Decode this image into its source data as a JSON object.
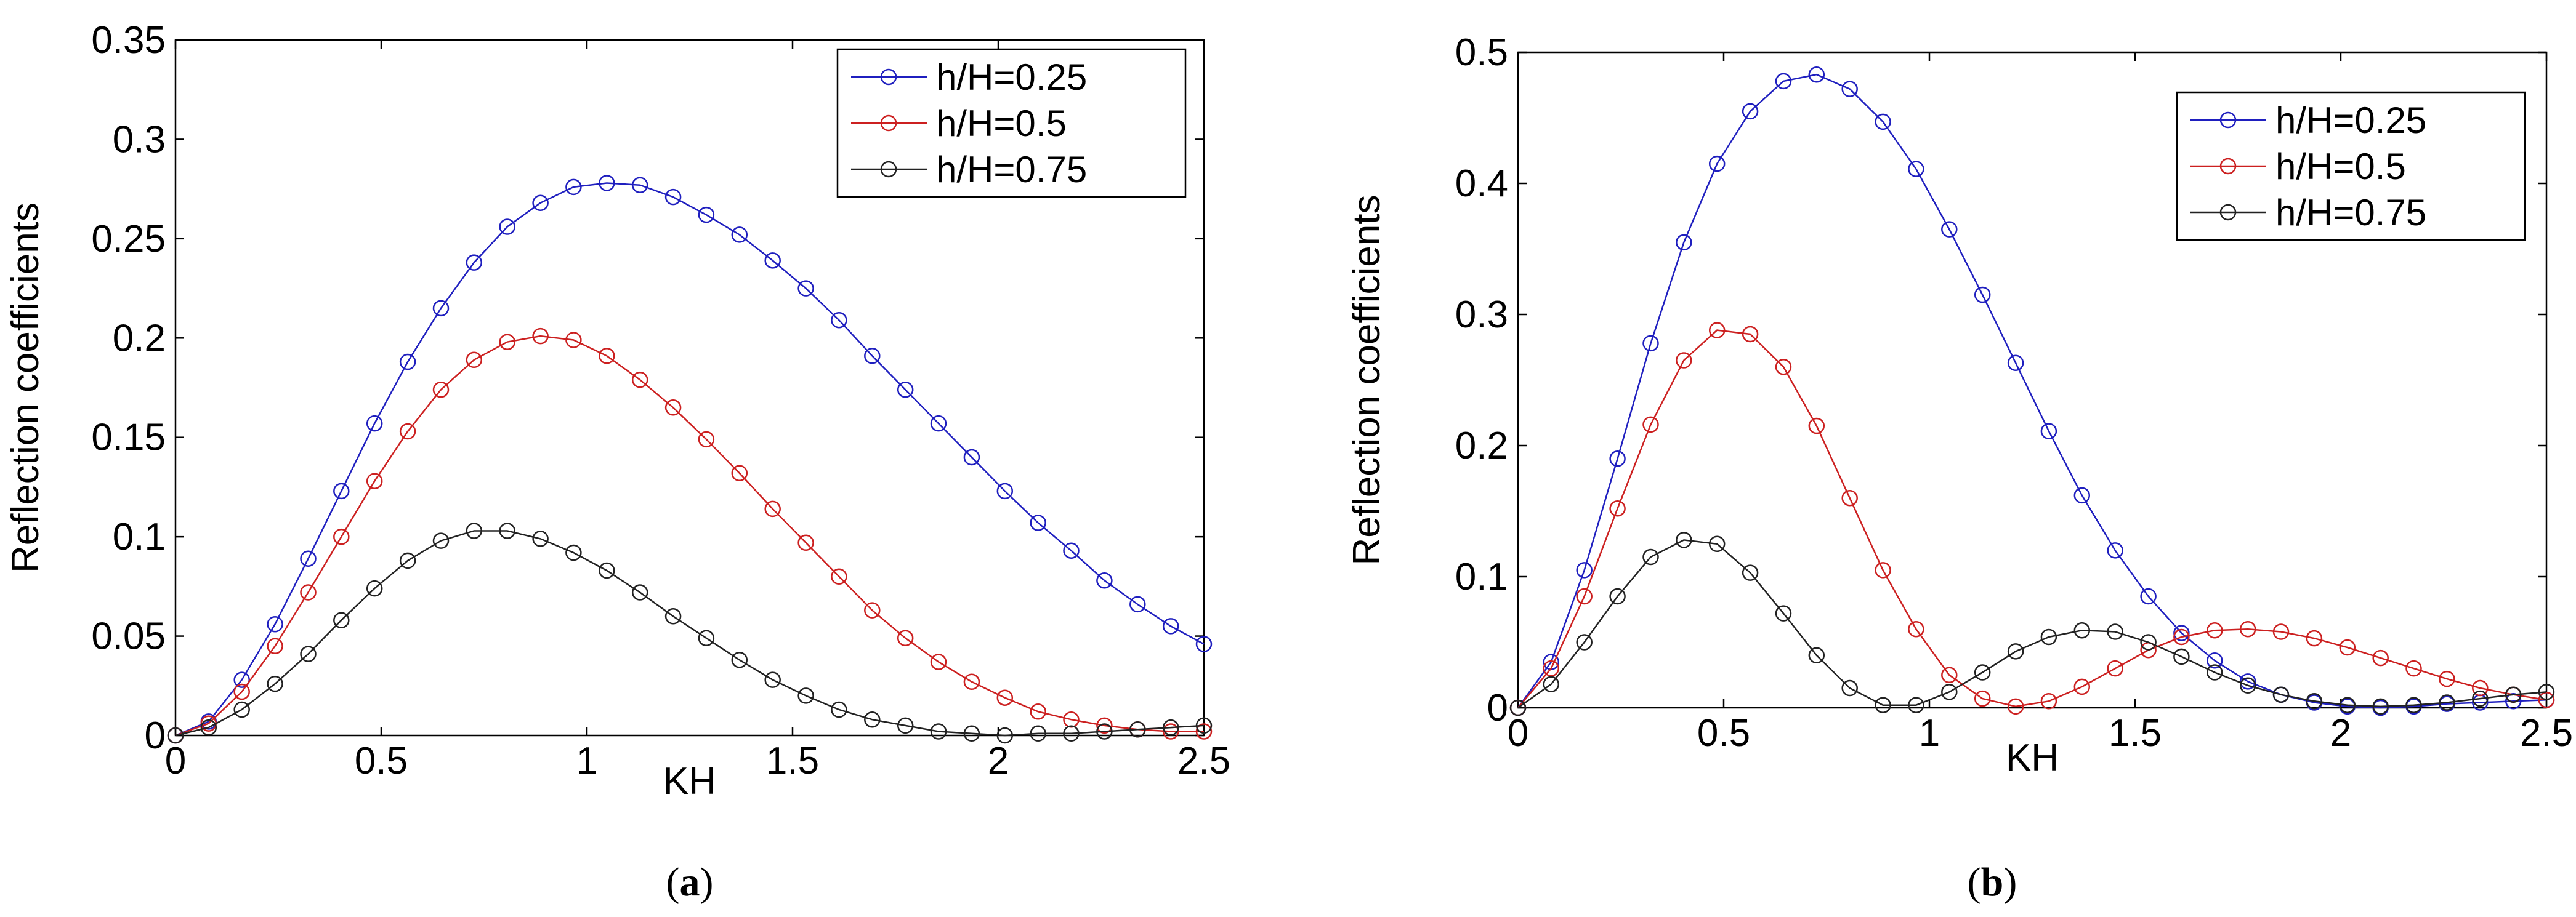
{
  "chart_data": [
    {
      "type": "line",
      "caption": {
        "open": "(",
        "letter": "a",
        "close": ")"
      },
      "title": "",
      "xlabel": "KH",
      "ylabel": "Reflection coefficients",
      "xlim": [
        0,
        2.5
      ],
      "ylim": [
        0,
        0.35
      ],
      "xticks": [
        0,
        0.5,
        1,
        1.5,
        2,
        2.5
      ],
      "xtick_labels": [
        "0",
        "0.5",
        "1",
        "1.5",
        "2",
        "2.5"
      ],
      "yticks": [
        0,
        0.05,
        0.1,
        0.15,
        0.2,
        0.25,
        0.3,
        0.35
      ],
      "ytick_labels": [
        "0",
        "0.05",
        "0.1",
        "0.15",
        "0.2",
        "0.25",
        "0.3",
        "0.35"
      ],
      "legend_position": "top-right",
      "marker": "circle",
      "x": [
        0,
        0.0806,
        0.1613,
        0.2419,
        0.3226,
        0.4032,
        0.4839,
        0.5645,
        0.6452,
        0.7258,
        0.8065,
        0.8871,
        0.9677,
        1.0484,
        1.129,
        1.2097,
        1.2903,
        1.371,
        1.4516,
        1.5323,
        1.6129,
        1.6935,
        1.7742,
        1.8548,
        1.9355,
        2.0161,
        2.0968,
        2.1774,
        2.2581,
        2.3387,
        2.4194,
        2.5
      ],
      "series": [
        {
          "name": "h/H=0.25",
          "color": "#1f1fbf",
          "values": [
            0.0,
            0.007,
            0.028,
            0.056,
            0.089,
            0.123,
            0.157,
            0.188,
            0.215,
            0.238,
            0.256,
            0.268,
            0.276,
            0.278,
            0.277,
            0.271,
            0.262,
            0.252,
            0.239,
            0.225,
            0.209,
            0.191,
            0.174,
            0.157,
            0.14,
            0.123,
            0.107,
            0.093,
            0.078,
            0.066,
            0.055,
            0.046
          ]
        },
        {
          "name": "h/H=0.5",
          "color": "#cc2020",
          "values": [
            0.0,
            0.006,
            0.022,
            0.045,
            0.072,
            0.1,
            0.128,
            0.153,
            0.174,
            0.189,
            0.198,
            0.201,
            0.199,
            0.191,
            0.179,
            0.165,
            0.149,
            0.132,
            0.114,
            0.097,
            0.08,
            0.063,
            0.049,
            0.037,
            0.027,
            0.019,
            0.012,
            0.008,
            0.005,
            0.003,
            0.002,
            0.002
          ]
        },
        {
          "name": "h/H=0.75",
          "color": "#222222",
          "values": [
            0.0,
            0.004,
            0.013,
            0.026,
            0.041,
            0.058,
            0.074,
            0.088,
            0.098,
            0.103,
            0.103,
            0.099,
            0.092,
            0.083,
            0.072,
            0.06,
            0.049,
            0.038,
            0.028,
            0.02,
            0.013,
            0.008,
            0.005,
            0.002,
            0.001,
            0.0,
            0.001,
            0.001,
            0.002,
            0.003,
            0.004,
            0.005
          ]
        }
      ]
    },
    {
      "type": "line",
      "caption": {
        "open": "(",
        "letter": "b",
        "close": ")"
      },
      "title": "",
      "xlabel": "KH",
      "ylabel": "Reflection coefficients",
      "xlim": [
        0,
        2.5
      ],
      "ylim": [
        0,
        0.5
      ],
      "xticks": [
        0,
        0.5,
        1,
        1.5,
        2,
        2.5
      ],
      "xtick_labels": [
        "0",
        "0.5",
        "1",
        "1.5",
        "2",
        "2.5"
      ],
      "yticks": [
        0,
        0.1,
        0.2,
        0.3,
        0.4,
        0.5
      ],
      "ytick_labels": [
        "0",
        "0.1",
        "0.2",
        "0.3",
        "0.4",
        "0.5"
      ],
      "legend_position": "top-right",
      "marker": "circle",
      "x": [
        0,
        0.0806,
        0.1613,
        0.2419,
        0.3226,
        0.4032,
        0.4839,
        0.5645,
        0.6452,
        0.7258,
        0.8065,
        0.8871,
        0.9677,
        1.0484,
        1.129,
        1.2097,
        1.2903,
        1.371,
        1.4516,
        1.5323,
        1.6129,
        1.6935,
        1.7742,
        1.8548,
        1.9355,
        2.0161,
        2.0968,
        2.1774,
        2.2581,
        2.3387,
        2.4194,
        2.5
      ],
      "series": [
        {
          "name": "h/H=0.25",
          "color": "#1f1fbf",
          "values": [
            0.0,
            0.035,
            0.105,
            0.19,
            0.278,
            0.355,
            0.415,
            0.455,
            0.478,
            0.483,
            0.472,
            0.447,
            0.411,
            0.365,
            0.315,
            0.263,
            0.211,
            0.162,
            0.12,
            0.085,
            0.057,
            0.036,
            0.02,
            0.01,
            0.004,
            0.001,
            0.0,
            0.001,
            0.003,
            0.004,
            0.005,
            0.006
          ]
        },
        {
          "name": "h/H=0.5",
          "color": "#cc2020",
          "values": [
            0.0,
            0.03,
            0.085,
            0.152,
            0.216,
            0.265,
            0.288,
            0.285,
            0.26,
            0.215,
            0.16,
            0.105,
            0.06,
            0.025,
            0.007,
            0.001,
            0.005,
            0.016,
            0.03,
            0.044,
            0.054,
            0.059,
            0.06,
            0.058,
            0.053,
            0.046,
            0.038,
            0.03,
            0.022,
            0.015,
            0.01,
            0.006
          ]
        },
        {
          "name": "h/H=0.75",
          "color": "#222222",
          "values": [
            0.0,
            0.018,
            0.05,
            0.085,
            0.115,
            0.128,
            0.125,
            0.103,
            0.072,
            0.04,
            0.015,
            0.002,
            0.002,
            0.012,
            0.027,
            0.043,
            0.054,
            0.059,
            0.058,
            0.05,
            0.039,
            0.027,
            0.017,
            0.01,
            0.005,
            0.002,
            0.001,
            0.002,
            0.004,
            0.007,
            0.01,
            0.012
          ]
        }
      ]
    }
  ]
}
